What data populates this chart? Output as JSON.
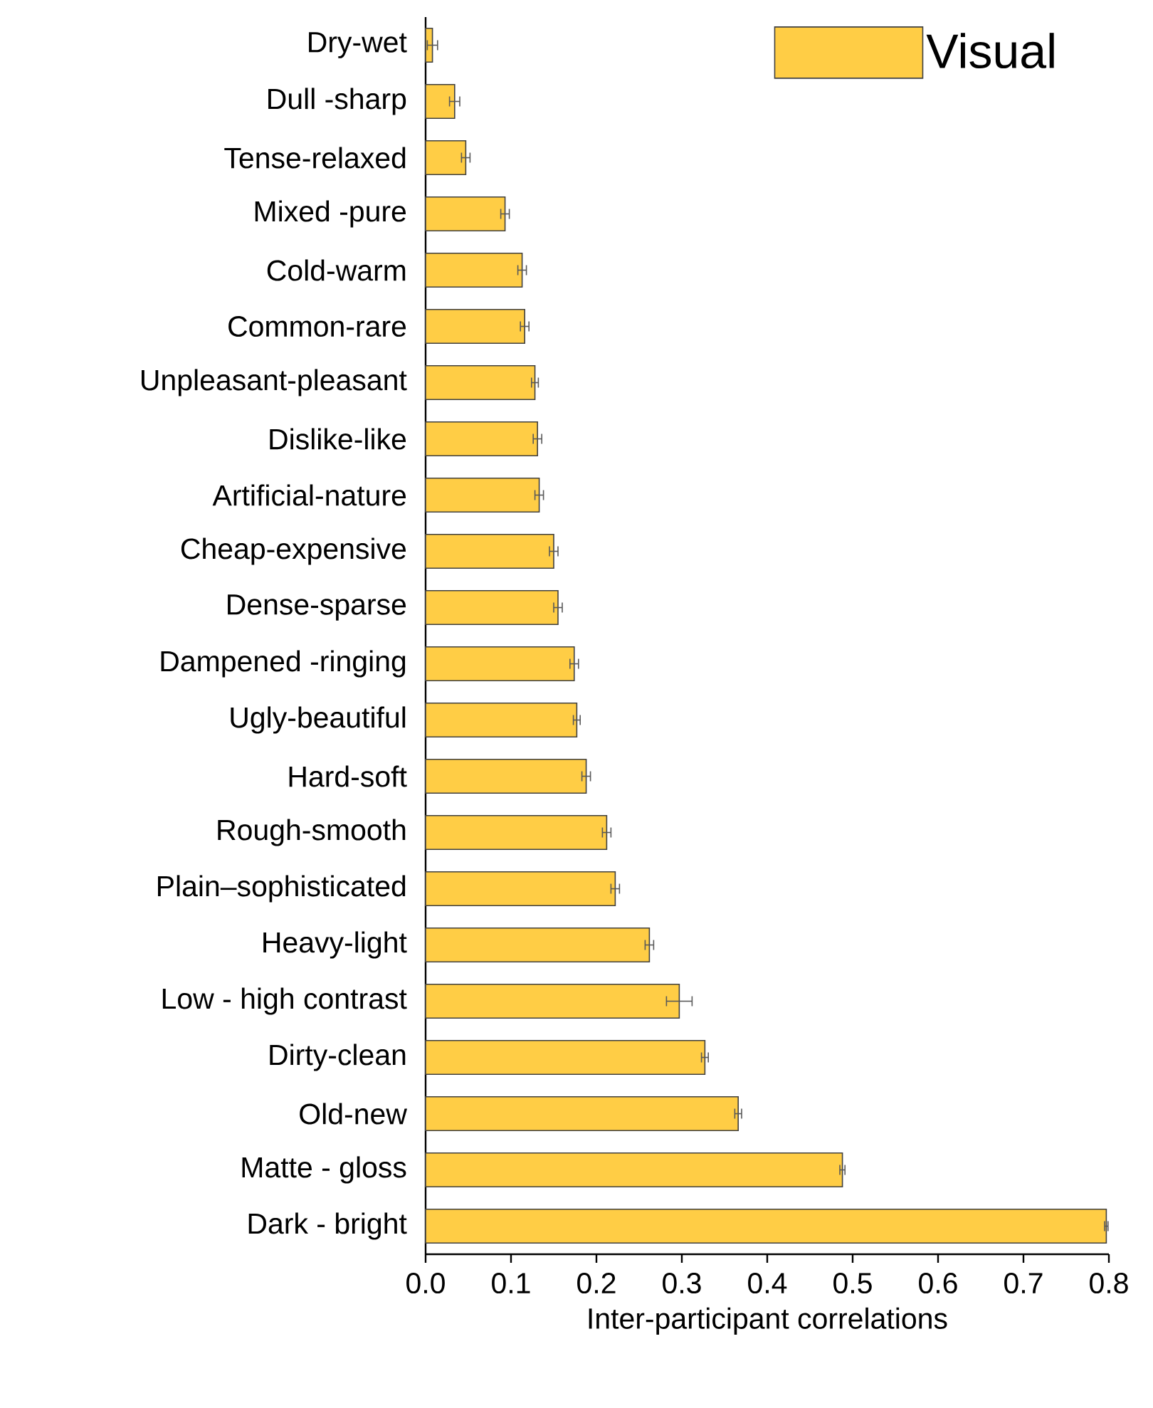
{
  "chart_data": {
    "type": "bar",
    "orientation": "horizontal",
    "categories": [
      "Dry-wet",
      "Dull -sharp",
      "Tense-relaxed",
      "Mixed -pure",
      "Cold-warm",
      "Common-rare",
      "Unpleasant-pleasant",
      "Dislike-like",
      "Artificial-nature",
      "Cheap-expensive",
      "Dense-sparse",
      "Dampened -ringing",
      "Ugly-beautiful",
      "Hard-soft",
      "Rough-smooth",
      "Plain–sophisticated",
      "Heavy-light",
      "Low - high contrast",
      "Dirty-clean",
      "Old-new",
      "Matte - gloss",
      "Dark - bright"
    ],
    "series": [
      {
        "name": "Visual",
        "color": "#ffcd45",
        "values": [
          0.008,
          0.034,
          0.047,
          0.093,
          0.113,
          0.116,
          0.128,
          0.131,
          0.133,
          0.15,
          0.155,
          0.174,
          0.177,
          0.188,
          0.212,
          0.222,
          0.262,
          0.297,
          0.327,
          0.366,
          0.488,
          0.797
        ],
        "errors": [
          0.006,
          0.006,
          0.005,
          0.005,
          0.005,
          0.005,
          0.004,
          0.005,
          0.005,
          0.005,
          0.005,
          0.005,
          0.004,
          0.005,
          0.005,
          0.005,
          0.005,
          0.015,
          0.004,
          0.004,
          0.003,
          0.002
        ]
      }
    ],
    "xlabel": "Inter-participant correlations",
    "xlim": [
      0,
      0.8
    ],
    "xticks": [
      {
        "value": 0,
        "label": "0.0"
      },
      0.1,
      0.2,
      0.3,
      0.4,
      0.5,
      0.6,
      0.7,
      0.8
    ],
    "legend": "top right",
    "grid": false
  }
}
